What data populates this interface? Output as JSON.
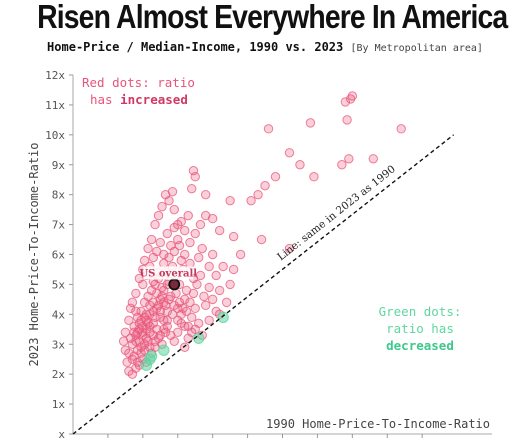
{
  "header": {
    "title": "Risen Almost Everywhere In America",
    "subtitle": "Home-Price / Median-Income, 1990 vs. 2023",
    "subtitle_note": "[By Metropolitan area]"
  },
  "colors": {
    "increased": "#e8557a",
    "decreased": "#5fd6a0",
    "overall": "#333333"
  },
  "chart_data": {
    "type": "scatter",
    "xlabel": "1990 Home-Price-To-Income-Ratio",
    "ylabel": "2023 Home-Price-To-Income-Ratio",
    "ylim": [
      0,
      12
    ],
    "xlim": [
      0,
      12
    ],
    "yticks": [
      "x",
      "1x",
      "2x",
      "3x",
      "4x",
      "5x",
      "6x",
      "7x",
      "8x",
      "9x",
      "10x",
      "11x",
      "12x"
    ],
    "grid": false,
    "legend_text": {
      "increased_line1": "Red dots: ratio",
      "increased_line2": "has",
      "increased_word": "increased",
      "decreased_line1": "Green dots:",
      "decreased_line2": "ratio has",
      "decreased_word": "decreased"
    },
    "reference_line": {
      "label": "Line: same in 2023 as 1990",
      "from": [
        0,
        0
      ],
      "to": [
        10.9,
        10.0
      ]
    },
    "overall_point": {
      "label": "US overall",
      "x": 2.9,
      "y": 5.0
    },
    "series": [
      {
        "name": "increased",
        "points": [
          [
            1.6,
            2.1
          ],
          [
            1.7,
            2.0
          ],
          [
            1.8,
            2.2
          ],
          [
            1.9,
            2.3
          ],
          [
            2.0,
            2.5
          ],
          [
            2.1,
            2.4
          ],
          [
            1.75,
            2.6
          ],
          [
            1.85,
            2.8
          ],
          [
            1.95,
            2.9
          ],
          [
            2.05,
            3.0
          ],
          [
            2.15,
            3.1
          ],
          [
            2.25,
            2.7
          ],
          [
            2.35,
            2.9
          ],
          [
            2.45,
            3.2
          ],
          [
            2.55,
            3.0
          ],
          [
            2.65,
            3.4
          ],
          [
            1.6,
            2.7
          ],
          [
            1.7,
            3.0
          ],
          [
            1.8,
            3.3
          ],
          [
            1.9,
            3.5
          ],
          [
            2.0,
            3.6
          ],
          [
            2.1,
            3.8
          ],
          [
            2.2,
            4.0
          ],
          [
            2.3,
            3.7
          ],
          [
            2.4,
            4.2
          ],
          [
            2.5,
            3.9
          ],
          [
            2.6,
            4.4
          ],
          [
            2.7,
            4.1
          ],
          [
            2.8,
            4.6
          ],
          [
            2.9,
            4.3
          ],
          [
            3.0,
            3.8
          ],
          [
            3.1,
            4.0
          ],
          [
            3.2,
            4.5
          ],
          [
            3.3,
            3.6
          ],
          [
            3.4,
            3.9
          ],
          [
            3.5,
            4.2
          ],
          [
            1.55,
            2.4
          ],
          [
            1.65,
            3.2
          ],
          [
            1.75,
            3.6
          ],
          [
            1.85,
            3.9
          ],
          [
            1.95,
            4.1
          ],
          [
            2.05,
            4.4
          ],
          [
            2.15,
            4.6
          ],
          [
            2.25,
            4.8
          ],
          [
            2.35,
            5.0
          ],
          [
            2.45,
            5.2
          ],
          [
            2.55,
            4.9
          ],
          [
            2.65,
            5.4
          ],
          [
            2.75,
            5.1
          ],
          [
            2.85,
            5.6
          ],
          [
            2.95,
            5.3
          ],
          [
            3.05,
            5.0
          ],
          [
            3.15,
            5.5
          ],
          [
            3.25,
            4.8
          ],
          [
            3.35,
            5.7
          ],
          [
            3.45,
            5.2
          ],
          [
            2.0,
            5.0
          ],
          [
            2.1,
            5.3
          ],
          [
            2.2,
            5.6
          ],
          [
            2.3,
            5.9
          ],
          [
            2.4,
            6.1
          ],
          [
            2.5,
            6.4
          ],
          [
            2.6,
            6.0
          ],
          [
            2.7,
            6.7
          ],
          [
            2.8,
            6.3
          ],
          [
            2.9,
            6.9
          ],
          [
            3.0,
            6.5
          ],
          [
            3.1,
            7.1
          ],
          [
            3.2,
            6.8
          ],
          [
            3.3,
            7.3
          ],
          [
            2.05,
            5.8
          ],
          [
            2.15,
            6.2
          ],
          [
            2.25,
            6.5
          ],
          [
            2.35,
            7.0
          ],
          [
            2.45,
            7.3
          ],
          [
            2.55,
            7.6
          ],
          [
            2.65,
            8.0
          ],
          [
            2.75,
            7.8
          ],
          [
            2.85,
            8.1
          ],
          [
            3.4,
            8.2
          ],
          [
            3.5,
            8.6
          ],
          [
            3.45,
            8.8
          ],
          [
            3.8,
            8.0
          ],
          [
            3.7,
            6.2
          ],
          [
            3.9,
            5.6
          ],
          [
            4.0,
            6.0
          ],
          [
            4.1,
            5.3
          ],
          [
            3.6,
            5.9
          ],
          [
            3.75,
            4.6
          ],
          [
            3.9,
            4.9
          ],
          [
            4.2,
            4.8
          ],
          [
            4.3,
            5.6
          ],
          [
            4.6,
            6.6
          ],
          [
            4.5,
            7.8
          ],
          [
            4.0,
            7.2
          ],
          [
            4.2,
            6.8
          ],
          [
            5.1,
            7.8
          ],
          [
            5.3,
            8.0
          ],
          [
            5.5,
            8.3
          ],
          [
            5.8,
            8.6
          ],
          [
            6.2,
            9.4
          ],
          [
            6.5,
            9.0
          ],
          [
            6.9,
            8.6
          ],
          [
            5.6,
            10.2
          ],
          [
            6.8,
            10.4
          ],
          [
            7.7,
            9.0
          ],
          [
            7.9,
            9.2
          ],
          [
            7.8,
            11.1
          ],
          [
            7.95,
            11.2
          ],
          [
            8.0,
            11.3
          ],
          [
            7.85,
            10.5
          ],
          [
            8.6,
            9.2
          ],
          [
            9.4,
            10.2
          ],
          [
            5.4,
            6.5
          ],
          [
            6.2,
            6.2
          ],
          [
            4.8,
            6.0
          ],
          [
            3.2,
            2.9
          ],
          [
            3.3,
            3.2
          ],
          [
            3.5,
            3.5
          ],
          [
            3.7,
            3.3
          ],
          [
            3.9,
            3.8
          ],
          [
            4.1,
            4.1
          ],
          [
            1.5,
            2.8
          ],
          [
            1.45,
            3.1
          ],
          [
            1.5,
            3.4
          ],
          [
            1.6,
            3.8
          ],
          [
            1.65,
            4.2
          ],
          [
            1.7,
            4.4
          ],
          [
            1.8,
            4.7
          ],
          [
            1.9,
            5.2
          ],
          [
            2.0,
            5.5
          ],
          [
            2.7,
            3.6
          ],
          [
            2.8,
            3.3
          ],
          [
            2.9,
            3.1
          ],
          [
            3.0,
            3.4
          ],
          [
            3.1,
            3.7
          ],
          [
            2.6,
            3.8
          ],
          [
            2.4,
            3.5
          ],
          [
            2.2,
            3.4
          ],
          [
            2.3,
            3.3
          ],
          [
            2.1,
            3.2
          ],
          [
            1.9,
            3.1
          ],
          [
            2.0,
            3.3
          ],
          [
            2.1,
            3.5
          ],
          [
            2.3,
            4.4
          ],
          [
            2.4,
            4.7
          ],
          [
            2.5,
            4.5
          ],
          [
            2.6,
            4.8
          ],
          [
            2.7,
            5.0
          ],
          [
            2.2,
            4.3
          ],
          [
            1.8,
            4.1
          ],
          [
            1.75,
            3.4
          ],
          [
            1.9,
            3.7
          ],
          [
            2.05,
            3.9
          ],
          [
            2.2,
            3.6
          ],
          [
            2.35,
            3.9
          ],
          [
            2.5,
            4.1
          ],
          [
            2.65,
            4.3
          ],
          [
            2.75,
            4.5
          ],
          [
            2.95,
            4.7
          ],
          [
            3.05,
            4.4
          ],
          [
            3.15,
            4.2
          ],
          [
            3.25,
            4.1
          ],
          [
            3.35,
            4.4
          ],
          [
            3.45,
            4.7
          ],
          [
            3.55,
            5.0
          ],
          [
            3.65,
            5.3
          ],
          [
            2.1,
            4.0
          ],
          [
            1.95,
            3.8
          ],
          [
            1.85,
            3.4
          ],
          [
            1.95,
            2.7
          ],
          [
            2.05,
            2.8
          ],
          [
            2.2,
            2.9
          ],
          [
            2.35,
            3.1
          ],
          [
            2.5,
            3.3
          ],
          [
            2.6,
            3.5
          ],
          [
            2.7,
            3.8
          ],
          [
            2.85,
            4.0
          ],
          [
            3.0,
            4.2
          ],
          [
            3.2,
            3.6
          ],
          [
            3.4,
            3.4
          ],
          [
            3.6,
            3.7
          ],
          [
            3.8,
            4.3
          ],
          [
            4.0,
            4.5
          ],
          [
            4.2,
            4.0
          ],
          [
            4.4,
            4.4
          ],
          [
            4.5,
            5.0
          ],
          [
            4.6,
            5.5
          ],
          [
            2.3,
            5.1
          ],
          [
            2.45,
            5.4
          ],
          [
            2.6,
            5.7
          ],
          [
            2.75,
            5.9
          ],
          [
            2.9,
            6.1
          ],
          [
            3.05,
            6.3
          ],
          [
            3.2,
            6.0
          ],
          [
            3.35,
            6.4
          ],
          [
            3.5,
            6.7
          ],
          [
            3.65,
            7.0
          ],
          [
            3.8,
            7.3
          ],
          [
            2.9,
            7.5
          ],
          [
            3.0,
            7.0
          ],
          [
            3.1,
            5.8
          ],
          [
            1.7,
            2.5
          ],
          [
            1.85,
            2.4
          ],
          [
            1.8,
            3.1
          ],
          [
            2.0,
            3.4
          ],
          [
            2.15,
            3.7
          ],
          [
            2.3,
            4.1
          ],
          [
            2.45,
            4.3
          ],
          [
            2.55,
            4.6
          ]
        ]
      },
      {
        "name": "decreased",
        "points": [
          [
            2.1,
            2.3
          ],
          [
            2.2,
            2.5
          ],
          [
            2.25,
            2.6
          ],
          [
            2.6,
            2.8
          ],
          [
            3.6,
            3.2
          ],
          [
            4.3,
            3.9
          ]
        ]
      }
    ]
  }
}
